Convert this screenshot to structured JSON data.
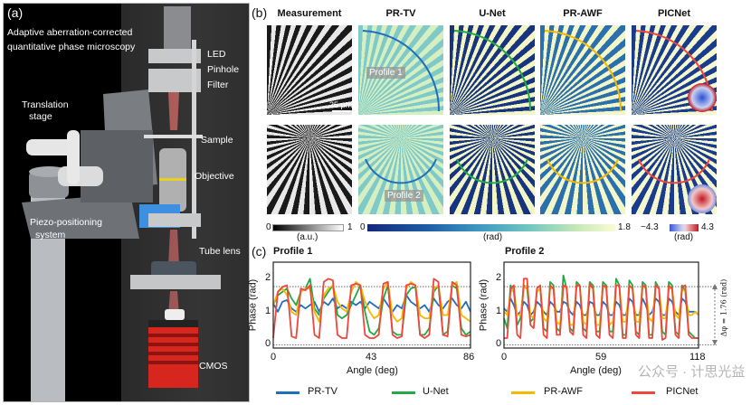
{
  "panel_a": {
    "label": "(a)",
    "title_line1": "Adaptive aberration-corrected",
    "title_line2": "quantitative phase microscopy",
    "components": {
      "led": "LED",
      "pinhole": "Pinhole",
      "filter": "Filter",
      "translation_stage_1": "Translation",
      "translation_stage_2": "stage",
      "sample": "Sample",
      "objective": "Objective",
      "piezo_1": "Piezo-positioning",
      "piezo_2": "system",
      "tube_lens": "Tube lens",
      "cmos": "CMOS"
    }
  },
  "panel_b": {
    "label": "(b)",
    "columns": [
      "Measurement",
      "PR-TV",
      "U-Net",
      "PR-AWF",
      "PICNet"
    ],
    "profile_labels": [
      "Profile 1",
      "Profile 2"
    ],
    "scale_bar": "25 μm",
    "colorbars": {
      "gray": {
        "min": "0",
        "max": "1",
        "unit": "(a.u.)"
      },
      "phase": {
        "min": "0",
        "max": "1.8",
        "unit": "(rad)"
      },
      "diverging": {
        "min": "−4.3",
        "max": "4.3",
        "unit": "(rad)"
      }
    },
    "colors": {
      "dark_blue": "#14307e",
      "teal": "#5fb8c4",
      "cream": "#f4f6c4",
      "red": "#d62828"
    }
  },
  "panel_c": {
    "label": "(c)",
    "delta_annotation": "Δφ = 1.76 (rad)"
  },
  "chart_data": [
    {
      "type": "line",
      "title": "Profile 1",
      "xlabel": "Angle (deg)",
      "ylabel": "Phase (rad)",
      "xlim": [
        0,
        86
      ],
      "ylim": [
        -0.1,
        2.5
      ],
      "xticks": [
        "0",
        "43",
        "86"
      ],
      "yticks": [
        "0",
        "1",
        "2"
      ],
      "x_start": 0,
      "x_step": 2,
      "reference_lines": [
        0,
        1.76
      ],
      "series": [
        {
          "name": "PR-TV",
          "color": "#1f6fbf",
          "values": [
            1.25,
            1.0,
            1.3,
            1.35,
            1.1,
            1.0,
            1.2,
            1.1,
            1.2,
            1.3,
            1.0,
            1.3,
            1.2,
            1.4,
            1.1,
            1.2,
            1.1,
            1.3,
            1.2,
            1.3,
            1.1,
            1.3,
            1.2,
            1.1,
            1.4,
            1.2,
            1.0,
            1.2,
            1.1,
            1.5,
            1.3,
            1.2,
            1.1,
            1.2,
            1.0,
            1.4,
            1.2,
            1.1,
            1.3,
            1.4,
            1.2,
            1.1,
            1.3,
            1.0
          ]
        },
        {
          "name": "U-Net",
          "color": "#22a845",
          "values": [
            1.2,
            1.5,
            1.6,
            1.7,
            1.4,
            1.2,
            1.6,
            1.7,
            2.0,
            1.1,
            0.9,
            1.4,
            1.6,
            1.8,
            0.9,
            0.8,
            0.9,
            1.2,
            1.5,
            1.8,
            1.0,
            0.4,
            0.3,
            0.5,
            1.4,
            1.8,
            0.4,
            0.3,
            0.3,
            1.5,
            1.7,
            1.75,
            0.3,
            0.3,
            0.5,
            1.6,
            1.8,
            0.3,
            0.4,
            1.8,
            1.7,
            0.5,
            0.3,
            0.4
          ]
        },
        {
          "name": "PR-AWF",
          "color": "#f5b800",
          "values": [
            1.2,
            1.6,
            1.7,
            1.5,
            1.0,
            0.9,
            1.6,
            1.7,
            1.7,
            1.0,
            0.7,
            1.5,
            1.7,
            1.8,
            1.3,
            1.1,
            1.0,
            1.6,
            1.9,
            1.8,
            1.3,
            1.0,
            0.8,
            0.9,
            1.7,
            1.9,
            0.9,
            0.7,
            0.8,
            1.7,
            1.9,
            1.8,
            0.9,
            0.8,
            0.8,
            1.7,
            1.8,
            0.9,
            0.9,
            1.8,
            1.9,
            0.9,
            0.8,
            0.7
          ]
        },
        {
          "name": "PICNet",
          "color": "#f0463c",
          "values": [
            0.2,
            1.6,
            1.75,
            1.8,
            0.25,
            0.2,
            1.7,
            1.65,
            1.8,
            0.3,
            0.2,
            1.9,
            2.0,
            1.95,
            0.3,
            0.2,
            0.2,
            1.8,
            1.85,
            1.8,
            0.3,
            0.2,
            0.2,
            0.3,
            1.85,
            1.9,
            0.3,
            0.2,
            0.25,
            1.8,
            1.85,
            1.8,
            0.3,
            0.2,
            0.3,
            2.0,
            1.9,
            0.3,
            0.25,
            1.9,
            1.8,
            0.3,
            0.25,
            0.3
          ]
        }
      ]
    },
    {
      "type": "line",
      "title": "Profile 2",
      "xlabel": "Angle (deg)",
      "ylabel": "Phase (rad)",
      "xlim": [
        0,
        118
      ],
      "ylim": [
        -0.1,
        2.5
      ],
      "xticks": [
        "0",
        "59",
        "118"
      ],
      "yticks": [
        "0",
        "1",
        "2"
      ],
      "x_start": 0,
      "x_step": 2,
      "reference_lines": [
        0,
        1.76
      ],
      "series": [
        {
          "name": "PR-TV",
          "color": "#1f6fbf",
          "values": [
            1.1,
            1.0,
            1.4,
            1.2,
            0.9,
            1.0,
            1.3,
            1.2,
            0.9,
            1.0,
            1.3,
            1.2,
            1.0,
            0.9,
            1.3,
            1.2,
            1.0,
            1.0,
            1.3,
            1.25,
            1.0,
            0.9,
            1.3,
            1.2,
            0.9,
            0.9,
            1.3,
            1.25,
            0.9,
            0.9,
            1.3,
            1.2,
            0.9,
            0.9,
            1.3,
            1.2,
            0.9,
            0.9,
            1.4,
            1.3,
            0.9,
            0.9,
            1.4,
            1.2,
            0.9,
            1.0,
            1.4,
            1.3,
            0.9,
            0.9,
            1.4,
            1.3,
            1.0,
            0.9,
            1.4,
            1.3,
            1.0,
            1.0,
            1.0,
            0.9
          ]
        },
        {
          "name": "U-Net",
          "color": "#22a845",
          "values": [
            0.8,
            0.5,
            1.8,
            1.6,
            0.6,
            0.8,
            1.8,
            1.7,
            0.7,
            0.8,
            1.6,
            1.7,
            0.5,
            0.4,
            1.9,
            1.8,
            0.5,
            0.4,
            2.1,
            1.7,
            0.5,
            0.4,
            1.9,
            1.8,
            0.5,
            0.4,
            1.9,
            1.8,
            0.4,
            0.4,
            1.9,
            1.8,
            0.4,
            0.4,
            2.0,
            1.8,
            0.3,
            0.3,
            1.95,
            1.8,
            0.4,
            0.3,
            1.9,
            1.8,
            0.3,
            0.3,
            1.9,
            1.7,
            0.4,
            0.3,
            1.9,
            1.8,
            0.4,
            0.3,
            1.8,
            1.6,
            0.4,
            0.3,
            0.2,
            0.2
          ]
        },
        {
          "name": "PR-AWF",
          "color": "#f5b800",
          "values": [
            1.0,
            0.9,
            1.6,
            1.7,
            0.9,
            0.9,
            1.7,
            1.8,
            0.9,
            0.8,
            1.6,
            1.7,
            0.8,
            0.7,
            1.7,
            1.7,
            0.7,
            0.6,
            1.8,
            1.7,
            0.6,
            0.6,
            1.8,
            1.8,
            0.7,
            0.6,
            1.8,
            1.7,
            0.6,
            0.6,
            1.8,
            1.7,
            0.6,
            0.7,
            1.8,
            1.8,
            0.7,
            0.7,
            1.8,
            1.7,
            0.7,
            0.7,
            1.8,
            1.7,
            0.8,
            0.7,
            1.8,
            1.7,
            0.8,
            0.8,
            1.7,
            1.7,
            0.9,
            0.8,
            1.7,
            1.6,
            0.9,
            0.9,
            1.0,
            0.9
          ]
        },
        {
          "name": "PICNet",
          "color": "#f0463c",
          "values": [
            0.2,
            0.2,
            1.7,
            1.8,
            0.3,
            0.2,
            2.0,
            2.0,
            0.6,
            0.5,
            1.7,
            1.8,
            0.3,
            0.2,
            1.8,
            1.7,
            0.3,
            0.3,
            1.8,
            1.75,
            0.4,
            0.3,
            1.8,
            1.8,
            0.3,
            0.2,
            1.85,
            1.7,
            0.3,
            0.2,
            1.8,
            1.75,
            0.3,
            0.2,
            1.8,
            1.8,
            0.2,
            0.2,
            1.8,
            1.7,
            0.3,
            0.2,
            1.8,
            1.75,
            0.2,
            0.2,
            1.8,
            1.7,
            0.15,
            0.2,
            1.8,
            1.7,
            0.3,
            0.2,
            1.75,
            1.8,
            0.3,
            0.2,
            0.2,
            0.2
          ]
        }
      ]
    }
  ],
  "legend": [
    "PR-TV",
    "U-Net",
    "PR-AWF",
    "PICNet"
  ],
  "watermark": "公众号 · 计思光益"
}
